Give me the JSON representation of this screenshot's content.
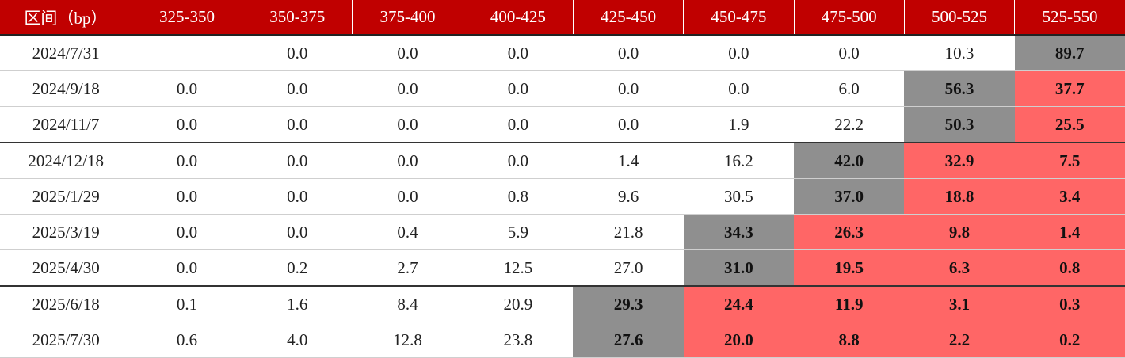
{
  "table": {
    "headers": [
      "区间（bp）",
      "325-350",
      "350-375",
      "375-400",
      "400-425",
      "425-450",
      "450-475",
      "475-500",
      "500-525",
      "525-550"
    ],
    "rows": [
      {
        "date": "2024/7/31",
        "cells": [
          "",
          "0.0",
          "0.0",
          "0.0",
          "0.0",
          "0.0",
          "0.0",
          "10.3",
          "89.7"
        ],
        "styles": [
          "",
          "",
          "",
          "",
          "",
          "",
          "",
          "",
          "grey"
        ]
      },
      {
        "date": "2024/9/18",
        "cells": [
          "0.0",
          "0.0",
          "0.0",
          "0.0",
          "0.0",
          "0.0",
          "6.0",
          "56.3",
          "37.7"
        ],
        "styles": [
          "",
          "",
          "",
          "",
          "",
          "",
          "",
          "grey",
          "red"
        ]
      },
      {
        "date": "2024/11/7",
        "cells": [
          "0.0",
          "0.0",
          "0.0",
          "0.0",
          "0.0",
          "1.9",
          "22.2",
          "50.3",
          "25.5"
        ],
        "styles": [
          "",
          "",
          "",
          "",
          "",
          "",
          "",
          "grey",
          "red"
        ]
      },
      {
        "date": "2024/12/18",
        "cells": [
          "0.0",
          "0.0",
          "0.0",
          "0.0",
          "1.4",
          "16.2",
          "42.0",
          "32.9",
          "7.5"
        ],
        "styles": [
          "",
          "",
          "",
          "",
          "",
          "",
          "grey",
          "red",
          "red"
        ]
      },
      {
        "date": "2025/1/29",
        "cells": [
          "0.0",
          "0.0",
          "0.0",
          "0.8",
          "9.6",
          "30.5",
          "37.0",
          "18.8",
          "3.4"
        ],
        "styles": [
          "",
          "",
          "",
          "",
          "",
          "",
          "grey",
          "red",
          "red"
        ]
      },
      {
        "date": "2025/3/19",
        "cells": [
          "0.0",
          "0.0",
          "0.4",
          "5.9",
          "21.8",
          "34.3",
          "26.3",
          "9.8",
          "1.4"
        ],
        "styles": [
          "",
          "",
          "",
          "",
          "",
          "grey",
          "red",
          "red",
          "red"
        ]
      },
      {
        "date": "2025/4/30",
        "cells": [
          "0.0",
          "0.2",
          "2.7",
          "12.5",
          "27.0",
          "31.0",
          "19.5",
          "6.3",
          "0.8"
        ],
        "styles": [
          "",
          "",
          "",
          "",
          "",
          "grey",
          "red",
          "red",
          "red"
        ]
      },
      {
        "date": "2025/6/18",
        "cells": [
          "0.1",
          "1.6",
          "8.4",
          "20.9",
          "29.3",
          "24.4",
          "11.9",
          "3.1",
          "0.3"
        ],
        "styles": [
          "",
          "",
          "",
          "",
          "grey",
          "red",
          "red",
          "red",
          "red"
        ]
      },
      {
        "date": "2025/7/30",
        "cells": [
          "0.6",
          "4.0",
          "12.8",
          "23.8",
          "27.6",
          "20.0",
          "8.8",
          "2.2",
          "0.2"
        ],
        "styles": [
          "",
          "",
          "",
          "",
          "grey",
          "red",
          "red",
          "red",
          "red"
        ]
      }
    ]
  },
  "colors": {
    "header_bg": "#c00000",
    "highlight_grey": "#8f8f8f",
    "highlight_red": "#ff6666"
  }
}
